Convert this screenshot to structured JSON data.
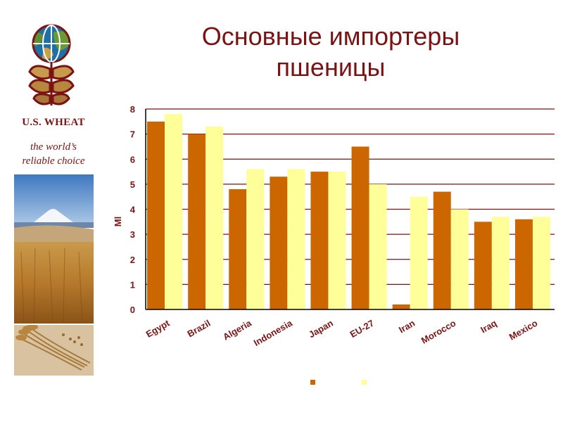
{
  "slide": {
    "title_lines": [
      "Основные импортеры",
      "пшеницы"
    ]
  },
  "brand": {
    "name": "U.S. WHEAT",
    "tagline_lines": [
      "the world’s",
      "reliable choice"
    ],
    "color": "#7a1414"
  },
  "chart_data": {
    "type": "bar",
    "title": "Основные импортеры пшеницы",
    "ylabel": "Ml",
    "xlabel": "",
    "ylim": [
      0,
      8
    ],
    "yticks": [
      0,
      1,
      2,
      3,
      4,
      5,
      6,
      7,
      8
    ],
    "grid": true,
    "legend_position": "bottom",
    "categories": [
      "Egypt",
      "Brazil",
      "Algeria",
      "Indonesia",
      "Japan",
      "EU-27",
      "Iran",
      "Morocco",
      "Iraq",
      "Mexico"
    ],
    "series": [
      {
        "name": "",
        "color": "#cc6600",
        "values": [
          7.5,
          7.0,
          4.8,
          5.3,
          5.5,
          6.5,
          0.2,
          4.7,
          3.5,
          3.6
        ]
      },
      {
        "name": "",
        "color": "#ffff99",
        "values": [
          7.8,
          7.3,
          5.6,
          5.6,
          5.5,
          5.0,
          4.5,
          4.0,
          3.7,
          3.7
        ]
      }
    ]
  }
}
